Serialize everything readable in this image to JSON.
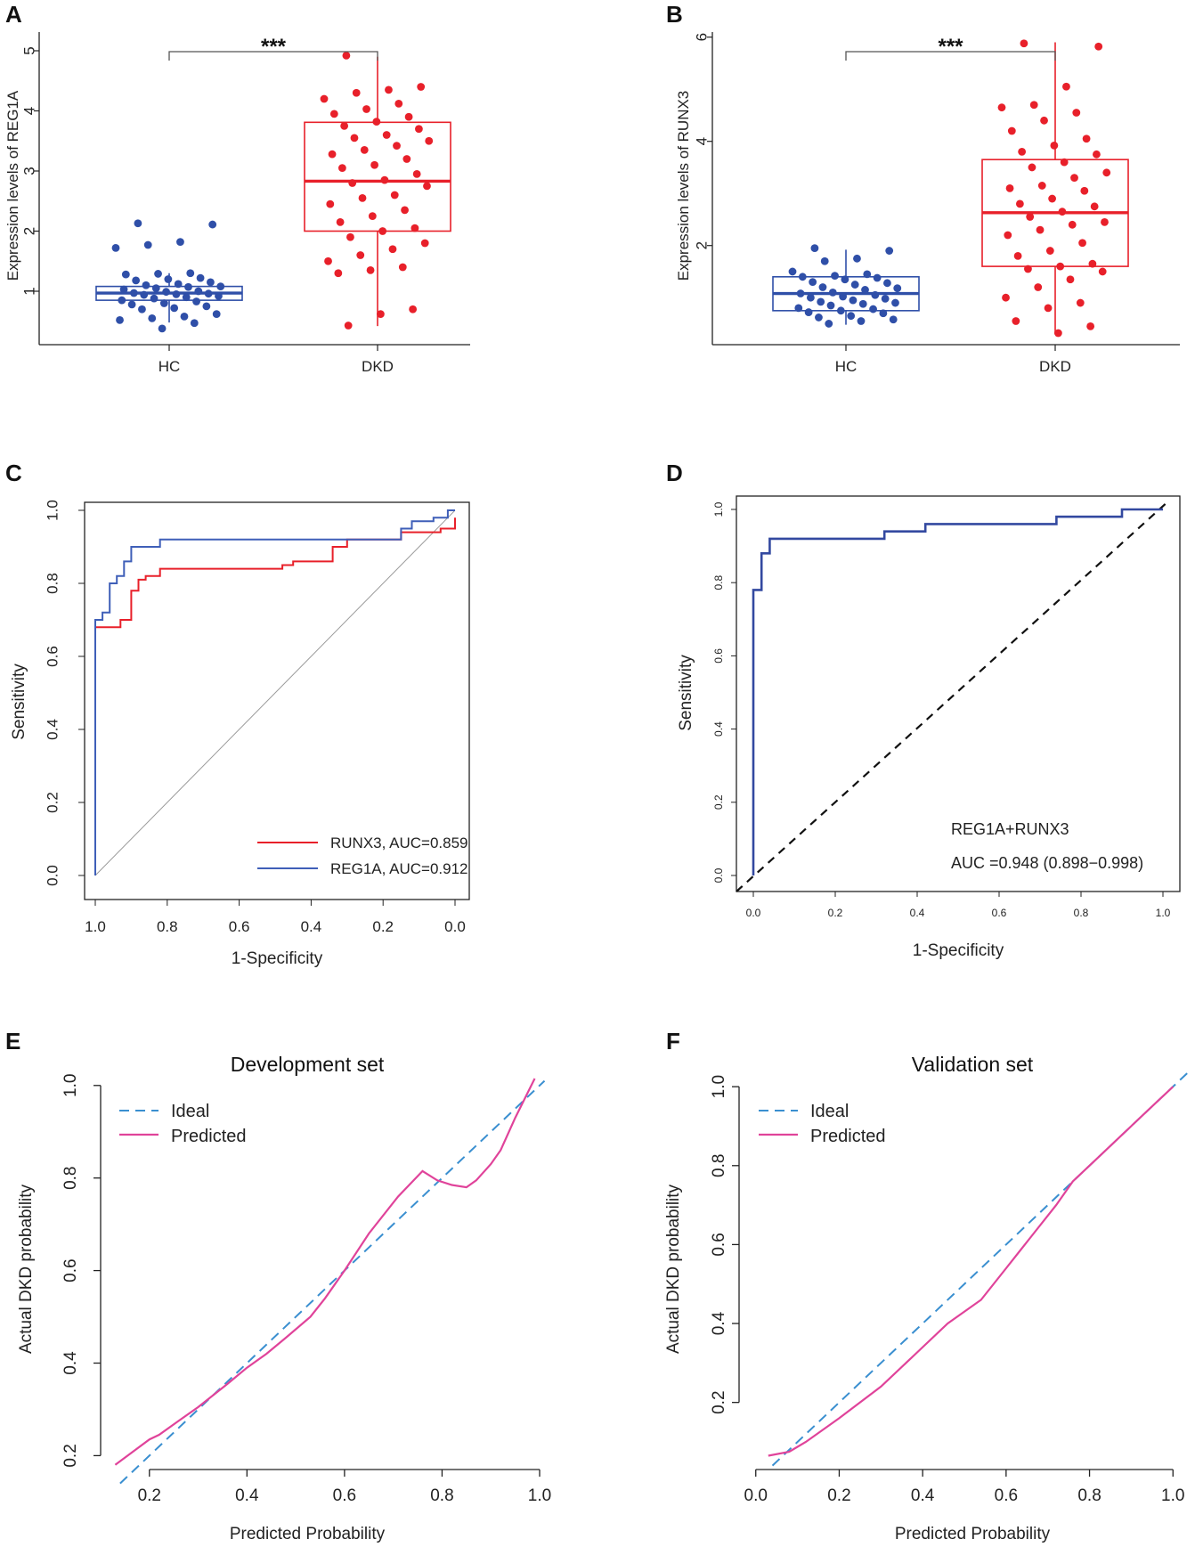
{
  "panels": {
    "A": "A",
    "B": "B",
    "C": "C",
    "D": "D",
    "E": "E",
    "F": "F"
  },
  "colors": {
    "hc": "#2f4fa8",
    "dkd": "#e8202a",
    "roc_runx3": "#e8202a",
    "roc_reg1a": "#3f5fb8",
    "roc_combined": "#3349a0",
    "ideal": "#3a8fd0",
    "predicted": "#e0439a",
    "axis": "#222222",
    "diagonal": "#999999"
  },
  "chart_data": [
    {
      "id": "A",
      "type": "box",
      "ylabel": "Expression levels of REG1A",
      "categories": [
        "HC",
        "DKD"
      ],
      "yticks": [
        "1",
        "2",
        "3",
        "4",
        "5"
      ],
      "ylim": [
        0.2,
        5.4
      ],
      "significance": "***",
      "boxes": [
        {
          "name": "HC",
          "min": 0.48,
          "q1": 0.85,
          "median": 0.97,
          "q3": 1.08,
          "max": 1.3
        },
        {
          "name": "DKD",
          "min": 0.42,
          "q1": 2.0,
          "median": 2.83,
          "q3": 3.81,
          "max": 4.9
        }
      ],
      "points": {
        "HC": [
          2.13,
          2.11,
          1.82,
          1.77,
          1.72,
          1.3,
          1.29,
          1.28,
          1.22,
          1.2,
          1.18,
          1.15,
          1.12,
          1.1,
          1.08,
          1.07,
          1.05,
          1.03,
          1.0,
          0.99,
          0.97,
          0.96,
          0.95,
          0.94,
          0.92,
          0.9,
          0.88,
          0.85,
          0.83,
          0.8,
          0.78,
          0.75,
          0.72,
          0.7,
          0.62,
          0.58,
          0.55,
          0.52,
          0.47,
          0.38
        ],
        "DKD": [
          4.92,
          4.4,
          4.35,
          4.3,
          4.2,
          4.12,
          4.03,
          3.95,
          3.9,
          3.82,
          3.75,
          3.7,
          3.6,
          3.55,
          3.5,
          3.42,
          3.35,
          3.28,
          3.2,
          3.1,
          3.05,
          2.95,
          2.85,
          2.8,
          2.75,
          2.6,
          2.55,
          2.45,
          2.35,
          2.25,
          2.15,
          2.05,
          2.0,
          1.9,
          1.8,
          1.7,
          1.6,
          1.5,
          1.4,
          1.35,
          1.3,
          0.7,
          0.62,
          0.43
        ]
      }
    },
    {
      "id": "B",
      "type": "box",
      "ylabel": "Expression levels of RUNX3",
      "categories": [
        "HC",
        "DKD"
      ],
      "yticks": [
        "2",
        "4",
        "6"
      ],
      "ylim": [
        0.2,
        6.2
      ],
      "significance": "***",
      "boxes": [
        {
          "name": "HC",
          "min": 0.48,
          "q1": 0.75,
          "median": 1.08,
          "q3": 1.4,
          "max": 1.92
        },
        {
          "name": "DKD",
          "min": 0.3,
          "q1": 1.6,
          "median": 2.63,
          "q3": 3.65,
          "max": 5.9
        }
      ],
      "points": {
        "HC": [
          1.95,
          1.9,
          1.75,
          1.7,
          1.5,
          1.45,
          1.42,
          1.4,
          1.38,
          1.35,
          1.3,
          1.28,
          1.25,
          1.2,
          1.18,
          1.15,
          1.1,
          1.08,
          1.05,
          1.02,
          1.0,
          0.98,
          0.95,
          0.92,
          0.9,
          0.88,
          0.85,
          0.8,
          0.78,
          0.75,
          0.72,
          0.7,
          0.65,
          0.62,
          0.58,
          0.55,
          0.5
        ],
        "DKD": [
          5.88,
          5.82,
          5.05,
          4.7,
          4.65,
          4.55,
          4.4,
          4.2,
          4.05,
          3.92,
          3.8,
          3.75,
          3.6,
          3.5,
          3.4,
          3.3,
          3.15,
          3.1,
          3.05,
          2.9,
          2.8,
          2.75,
          2.65,
          2.55,
          2.45,
          2.4,
          2.3,
          2.2,
          2.05,
          1.9,
          1.8,
          1.65,
          1.6,
          1.55,
          1.5,
          1.35,
          1.2,
          1.0,
          0.9,
          0.8,
          0.55,
          0.45,
          0.32
        ]
      }
    },
    {
      "id": "C",
      "type": "line",
      "xlabel": "1-Specificity",
      "ylabel": "Sensitivity",
      "xticks": [
        "1.0",
        "0.8",
        "0.6",
        "0.4",
        "0.2",
        "0.0"
      ],
      "yticks": [
        "0.0",
        "0.2",
        "0.4",
        "0.6",
        "0.8",
        "1.0"
      ],
      "xlim": [
        1.0,
        0.0
      ],
      "ylim": [
        0.0,
        1.0
      ],
      "series": [
        {
          "name": "RUNX3",
          "legend": "RUNX3, AUC=0.859",
          "auc": 0.859,
          "x": [
            1.0,
            1.0,
            1.0,
            0.93,
            0.93,
            0.9,
            0.9,
            0.88,
            0.88,
            0.86,
            0.86,
            0.82,
            0.82,
            0.48,
            0.48,
            0.45,
            0.45,
            0.34,
            0.34,
            0.3,
            0.3,
            0.15,
            0.15,
            0.04,
            0.04,
            0.0,
            0.0
          ],
          "y": [
            0.0,
            0.68,
            0.68,
            0.68,
            0.7,
            0.7,
            0.78,
            0.78,
            0.81,
            0.81,
            0.82,
            0.82,
            0.84,
            0.84,
            0.85,
            0.85,
            0.86,
            0.86,
            0.9,
            0.9,
            0.92,
            0.92,
            0.94,
            0.94,
            0.95,
            0.95,
            0.98
          ]
        },
        {
          "name": "REG1A",
          "legend": "REG1A, AUC=0.912",
          "auc": 0.912,
          "x": [
            1.0,
            1.0,
            1.0,
            0.98,
            0.98,
            0.96,
            0.96,
            0.94,
            0.94,
            0.92,
            0.92,
            0.9,
            0.9,
            0.82,
            0.82,
            0.15,
            0.15,
            0.12,
            0.12,
            0.06,
            0.06,
            0.02,
            0.02,
            0.0
          ],
          "y": [
            0.0,
            0.7,
            0.7,
            0.7,
            0.72,
            0.72,
            0.8,
            0.8,
            0.82,
            0.82,
            0.86,
            0.86,
            0.9,
            0.9,
            0.92,
            0.92,
            0.95,
            0.95,
            0.97,
            0.97,
            0.98,
            0.98,
            1.0,
            1.0
          ]
        }
      ]
    },
    {
      "id": "D",
      "type": "line",
      "xlabel": "1-Specificity",
      "ylabel": "Sensitivity",
      "xticks": [
        "0.0",
        "0.2",
        "0.4",
        "0.6",
        "0.8",
        "1.0"
      ],
      "yticks": [
        "0.0",
        "0.2",
        "0.4",
        "0.6",
        "0.8",
        "1.0"
      ],
      "xlim": [
        0.0,
        1.0
      ],
      "ylim": [
        0.0,
        1.0
      ],
      "annotation_label": "REG1A+RUNX3",
      "annotation_auc": "AUC =0.948 (0.898−0.998)",
      "series": [
        {
          "name": "REG1A+RUNX3",
          "auc": 0.948,
          "x": [
            0.0,
            0.0,
            0.02,
            0.02,
            0.04,
            0.04,
            0.32,
            0.32,
            0.42,
            0.42,
            0.74,
            0.74,
            0.9,
            0.9,
            1.0
          ],
          "y": [
            0.0,
            0.78,
            0.78,
            0.88,
            0.88,
            0.92,
            0.92,
            0.94,
            0.94,
            0.96,
            0.96,
            0.98,
            0.98,
            1.0,
            1.0
          ]
        }
      ]
    },
    {
      "id": "E",
      "type": "line",
      "title": "Development set",
      "xlabel": "Predicted Probability",
      "ylabel": "Actual DKD probability",
      "xticks": [
        "0.2",
        "0.4",
        "0.6",
        "0.8",
        "1.0"
      ],
      "yticks": [
        "0.2",
        "0.4",
        "0.6",
        "0.8",
        "1.0"
      ],
      "xlim": [
        0.1,
        1.0
      ],
      "ylim": [
        0.17,
        1.04
      ],
      "series": [
        {
          "name": "Ideal",
          "x": [
            0.14,
            1.01
          ],
          "y": [
            0.14,
            1.01
          ]
        },
        {
          "name": "Predicted",
          "x": [
            0.13,
            0.2,
            0.22,
            0.26,
            0.3,
            0.36,
            0.4,
            0.44,
            0.48,
            0.53,
            0.56,
            0.6,
            0.65,
            0.71,
            0.76,
            0.79,
            0.82,
            0.85,
            0.87,
            0.9,
            0.92,
            0.95,
            0.99
          ],
          "y": [
            0.18,
            0.235,
            0.245,
            0.275,
            0.305,
            0.355,
            0.39,
            0.42,
            0.455,
            0.5,
            0.54,
            0.6,
            0.68,
            0.76,
            0.815,
            0.795,
            0.785,
            0.78,
            0.795,
            0.83,
            0.86,
            0.93,
            1.015
          ]
        }
      ]
    },
    {
      "id": "F",
      "type": "line",
      "title": "Validation set",
      "xlabel": "Predicted Probability",
      "ylabel": "Actual DKD probability",
      "xticks": [
        "0.0",
        "0.2",
        "0.4",
        "0.6",
        "0.8",
        "1.0"
      ],
      "yticks": [
        "0.2",
        "0.4",
        "0.6",
        "0.8",
        "1.0"
      ],
      "xlim": [
        -0.04,
        1.04
      ],
      "ylim": [
        0.03,
        1.05
      ],
      "series": [
        {
          "name": "Ideal",
          "x": [
            0.04,
            1.04
          ],
          "y": [
            0.04,
            1.04
          ]
        },
        {
          "name": "Predicted",
          "x": [
            0.03,
            0.08,
            0.12,
            0.2,
            0.3,
            0.38,
            0.46,
            0.54,
            0.6,
            0.66,
            0.72,
            0.76,
            0.82,
            0.88,
            0.94,
            1.0
          ],
          "y": [
            0.065,
            0.075,
            0.1,
            0.16,
            0.24,
            0.32,
            0.4,
            0.46,
            0.54,
            0.62,
            0.7,
            0.76,
            0.82,
            0.88,
            0.94,
            1.0
          ]
        }
      ]
    }
  ],
  "legends": {
    "C": [
      "RUNX3, AUC=0.859",
      "REG1A, AUC=0.912"
    ],
    "E": [
      "Ideal",
      "Predicted"
    ],
    "F": [
      "Ideal",
      "Predicted"
    ]
  }
}
